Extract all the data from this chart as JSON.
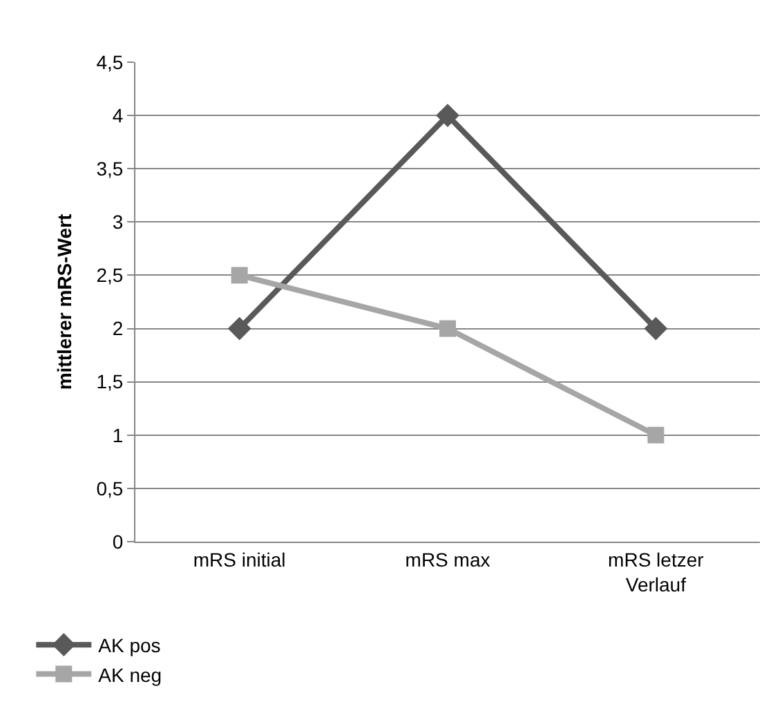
{
  "chart_data": {
    "type": "line",
    "ylabel": "mittlerer mRS-Wert",
    "categories": [
      "mRS initial",
      "mRS max",
      "mRS letzer Verlauf"
    ],
    "series": [
      {
        "name": "AK pos",
        "color": "#595959",
        "marker": "diamond",
        "values": [
          2,
          4,
          2
        ]
      },
      {
        "name": "AK neg",
        "color": "#a6a6a6",
        "marker": "square",
        "values": [
          2.5,
          2,
          1
        ]
      }
    ],
    "ylim": [
      0,
      4.5
    ],
    "yticks": [
      0,
      {
        "value": 0.5,
        "label": "0,5"
      },
      1,
      {
        "value": 1.5,
        "label": "1,5"
      },
      2,
      {
        "value": 2.5,
        "label": "2,5"
      },
      3,
      {
        "value": 3.5,
        "label": "3,5"
      },
      4,
      {
        "value": 4.5,
        "label": "4,5"
      }
    ],
    "grid": "y",
    "legend": "bottom left",
    "line_style": "solid"
  }
}
